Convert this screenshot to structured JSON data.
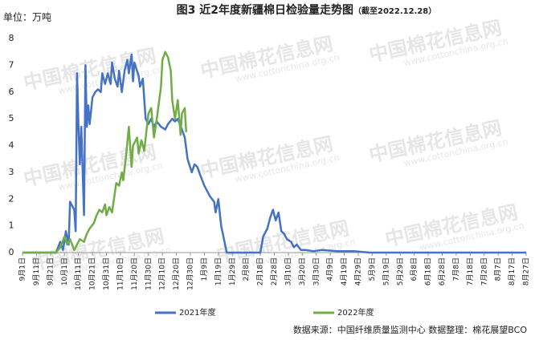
{
  "chart_data": {
    "type": "line",
    "title": "图3 近2年度新疆棉日检验量走势图",
    "subtitle": "（截至2022.12.28）",
    "y_unit": "单位：万吨",
    "source": "数据来源：中国纤维质量监测中心  数据整理：棉花展望BCO",
    "watermark": {
      "name": "中国棉花信息网",
      "url": "www.cottonchina.org.cn"
    },
    "xlim": [
      0,
      360
    ],
    "xticks": [
      {
        "value": 0,
        "label": "9月1日"
      },
      {
        "value": 10,
        "label": "9月11日"
      },
      {
        "value": 20,
        "label": "9月21日"
      },
      {
        "value": 30,
        "label": "10月1日"
      },
      {
        "value": 40,
        "label": "10月11日"
      },
      {
        "value": 50,
        "label": "10月21日"
      },
      {
        "value": 60,
        "label": "10月31日"
      },
      {
        "value": 70,
        "label": "11月10日"
      },
      {
        "value": 80,
        "label": "11月20日"
      },
      {
        "value": 90,
        "label": "11月30日"
      },
      {
        "value": 100,
        "label": "12月10日"
      },
      {
        "value": 110,
        "label": "12月20日"
      },
      {
        "value": 120,
        "label": "12月30日"
      },
      {
        "value": 130,
        "label": "1月9日"
      },
      {
        "value": 140,
        "label": "1月19日"
      },
      {
        "value": 150,
        "label": "1月29日"
      },
      {
        "value": 160,
        "label": "2月8日"
      },
      {
        "value": 170,
        "label": "2月18日"
      },
      {
        "value": 180,
        "label": "2月28日"
      },
      {
        "value": 190,
        "label": "3月10日"
      },
      {
        "value": 200,
        "label": "3月20日"
      },
      {
        "value": 210,
        "label": "3月30日"
      },
      {
        "value": 220,
        "label": "4月9日"
      },
      {
        "value": 230,
        "label": "4月19日"
      },
      {
        "value": 240,
        "label": "4月29日"
      },
      {
        "value": 250,
        "label": "5月9日"
      },
      {
        "value": 260,
        "label": "5月19日"
      },
      {
        "value": 270,
        "label": "5月29日"
      },
      {
        "value": 280,
        "label": "6月8日"
      },
      {
        "value": 290,
        "label": "6月18日"
      },
      {
        "value": 300,
        "label": "6月28日"
      },
      {
        "value": 310,
        "label": "7月8日"
      },
      {
        "value": 320,
        "label": "7月18日"
      },
      {
        "value": 330,
        "label": "7月28日"
      },
      {
        "value": 340,
        "label": "8月7日"
      },
      {
        "value": 350,
        "label": "8月17日"
      },
      {
        "value": 360,
        "label": "8月27日"
      }
    ],
    "ylim": [
      0,
      8
    ],
    "yticks": [
      0,
      1,
      2,
      3,
      4,
      5,
      6,
      7,
      8
    ],
    "grid": false,
    "legend": "bottom",
    "series": [
      {
        "name": "2021年度",
        "color": "#4472c4",
        "x": [
          0,
          24,
          27,
          29,
          31,
          33,
          34,
          37,
          38,
          39,
          40,
          41,
          42,
          44,
          45,
          46,
          47,
          48,
          50,
          52,
          54,
          56,
          57,
          59,
          61,
          63,
          64,
          66,
          68,
          69,
          71,
          73,
          75,
          76,
          78,
          79,
          80,
          83,
          84,
          86,
          88,
          90,
          92,
          94,
          96,
          99,
          102,
          104,
          107,
          109,
          111,
          114,
          116,
          118,
          121,
          123,
          125,
          127,
          130,
          132,
          134,
          137,
          138,
          140,
          142,
          144,
          146,
          170,
          172,
          175,
          177,
          179,
          181,
          183,
          185,
          187,
          189,
          192,
          194,
          196,
          199,
          202,
          208,
          214,
          225,
          237,
          248,
          360
        ],
        "values": [
          0,
          0,
          0.4,
          0.1,
          0.8,
          0.3,
          1.9,
          1.6,
          0.8,
          6.7,
          4.7,
          3.3,
          4.7,
          1.4,
          7.0,
          4.7,
          5.5,
          4.8,
          5.8,
          6.0,
          6.1,
          6.0,
          6.7,
          6.3,
          6.7,
          6.3,
          7.1,
          6.5,
          6.2,
          6.8,
          6.0,
          6.8,
          7.2,
          6.7,
          7.4,
          6.4,
          7.1,
          6.6,
          6.2,
          6.5,
          5.0,
          4.8,
          5.0,
          4.7,
          4.9,
          4.7,
          4.6,
          4.8,
          5.0,
          4.9,
          5.0,
          4.6,
          4.3,
          3.5,
          3.0,
          3.3,
          3.2,
          2.9,
          2.5,
          2.3,
          2.1,
          1.9,
          1.5,
          2.0,
          1.0,
          0.5,
          0,
          0,
          0.6,
          0.9,
          1.3,
          1.6,
          1.2,
          1.5,
          0.8,
          0.7,
          0.5,
          0.4,
          0.2,
          0.3,
          0.1,
          0.1,
          0.05,
          0.1,
          0.05,
          0.05,
          0,
          0
        ]
      },
      {
        "name": "2022年度",
        "color": "#70ad47",
        "x": [
          0,
          24,
          27,
          30,
          32,
          34,
          37,
          39,
          41,
          44,
          46,
          48,
          51,
          53,
          55,
          57,
          59,
          60,
          62,
          64,
          67,
          69,
          71,
          72,
          74,
          76,
          78,
          79,
          82,
          83,
          85,
          87,
          90,
          92,
          94,
          96,
          99,
          100,
          102,
          104,
          106,
          107,
          109,
          111,
          113,
          114,
          116,
          117
        ],
        "values": [
          0,
          0,
          0.2,
          0.6,
          0.3,
          0.5,
          0.1,
          0.3,
          0.5,
          0.4,
          0.7,
          0.9,
          1.1,
          1.4,
          1.6,
          1.5,
          1.8,
          1.4,
          1.7,
          1.5,
          2.6,
          2.5,
          3.0,
          2.7,
          3.6,
          4.7,
          3.2,
          4.0,
          4.3,
          3.7,
          4.2,
          3.8,
          5.2,
          5.4,
          4.3,
          5.0,
          6.2,
          7.2,
          7.5,
          7.3,
          6.8,
          5.7,
          5.0,
          5.7,
          4.4,
          5.2,
          5.4,
          4.5
        ]
      }
    ]
  }
}
